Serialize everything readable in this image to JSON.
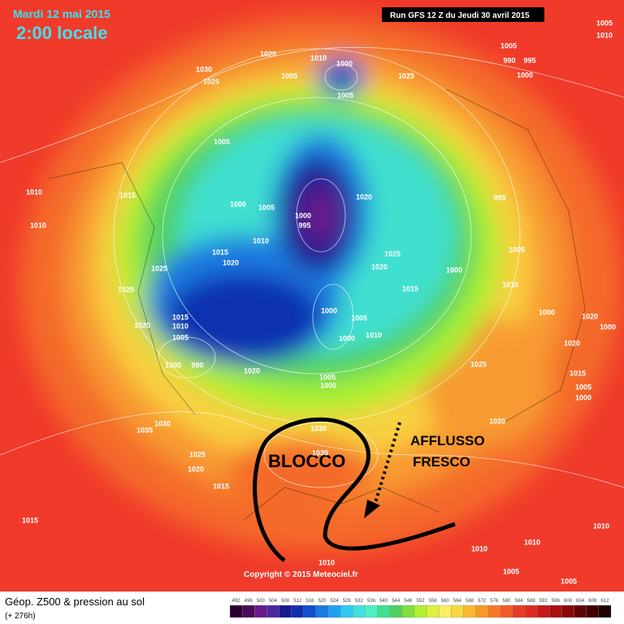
{
  "header": {
    "date": "Mardi 12 mai 2015",
    "time": "2:00 locale",
    "run": "Run GFS 12 Z du Jeudi 30 avril 2015"
  },
  "footer": {
    "title": "Géop. Z500 & pression au sol",
    "lead": "(+ 276h)",
    "copyright": "Copyright © 2015 Meteociel.fr"
  },
  "annotations": {
    "block": "BLOCCO",
    "inflow_1": "AFFLUSSO",
    "inflow_2": "FRESCO"
  },
  "isobar_labels": [
    1030,
    1025,
    1020,
    1010,
    1000,
    1005,
    1005,
    1025,
    1005,
    990,
    995,
    1000,
    1005,
    1010,
    1005,
    1020,
    995,
    1010,
    1015,
    1010,
    1000,
    1005,
    1000,
    995,
    1010,
    1015,
    1020,
    1025,
    1020,
    1000,
    1005,
    1025,
    1025,
    1015,
    1010,
    1000,
    1005,
    1000,
    1010,
    1000,
    1020,
    1000,
    1015,
    1010,
    1020,
    1005,
    1000,
    990,
    1020,
    1025,
    1020,
    1015,
    1005,
    1000,
    1005,
    1000,
    1035,
    1030,
    1030,
    1035,
    1020,
    1025,
    1020,
    1015,
    1015,
    1010,
    1010,
    1010,
    1005,
    1010,
    1005
  ],
  "scale": {
    "values": [
      492,
      496,
      500,
      504,
      508,
      512,
      516,
      520,
      524,
      528,
      532,
      536,
      540,
      544,
      548,
      552,
      556,
      560,
      564,
      568,
      572,
      576,
      580,
      584,
      588,
      592,
      596,
      600,
      604,
      608,
      612
    ],
    "colors": [
      "#2a0030",
      "#4a0a5a",
      "#6a1a8a",
      "#4a2aa0",
      "#1a1a90",
      "#1030b0",
      "#1050d0",
      "#1a7ae0",
      "#20a0f0",
      "#30c8f0",
      "#40e0e0",
      "#50f0c0",
      "#40e090",
      "#50d060",
      "#80e040",
      "#b0f030",
      "#e0f040",
      "#f8f060",
      "#f8d840",
      "#f8b830",
      "#f89828",
      "#f87828",
      "#f05a28",
      "#e83a28",
      "#e02a20",
      "#c81818",
      "#a81010",
      "#880808",
      "#600404",
      "#400000",
      "#200000"
    ]
  }
}
